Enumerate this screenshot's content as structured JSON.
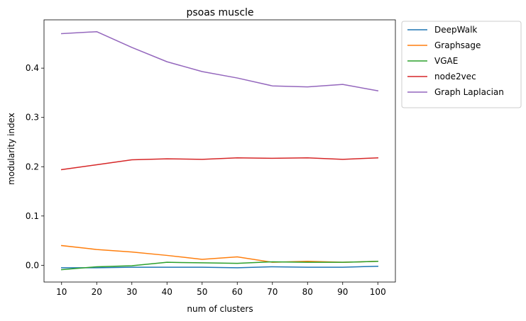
{
  "chart_data": {
    "type": "line",
    "title": "psoas muscle",
    "xlabel": "num of clusters",
    "ylabel": "modularity index",
    "x": [
      10,
      20,
      30,
      40,
      50,
      60,
      70,
      80,
      90,
      100
    ],
    "xlim": [
      5,
      105
    ],
    "ylim": [
      -0.034,
      0.498
    ],
    "xticks": [
      "10",
      "20",
      "30",
      "40",
      "50",
      "60",
      "70",
      "80",
      "90",
      "100"
    ],
    "yticks": [
      "0.0",
      "0.1",
      "0.2",
      "0.3",
      "0.4"
    ],
    "grid": false,
    "legend_position": "outside-top-right",
    "series": [
      {
        "name": "DeepWalk",
        "color": "#1f77b4",
        "values": [
          -0.005,
          -0.005,
          -0.004,
          -0.004,
          -0.004,
          -0.005,
          -0.003,
          -0.004,
          -0.004,
          -0.002
        ]
      },
      {
        "name": "Graphsage",
        "color": "#ff7f0e",
        "values": [
          0.04,
          0.032,
          0.027,
          0.02,
          0.012,
          0.017,
          0.006,
          0.008,
          0.006,
          0.008
        ]
      },
      {
        "name": "VGAE",
        "color": "#2ca02c",
        "values": [
          -0.009,
          -0.003,
          -0.001,
          0.006,
          0.005,
          0.004,
          0.007,
          0.006,
          0.006,
          0.008
        ]
      },
      {
        "name": "node2vec",
        "color": "#d62728",
        "values": [
          0.194,
          0.204,
          0.214,
          0.216,
          0.215,
          0.218,
          0.217,
          0.218,
          0.215,
          0.218
        ]
      },
      {
        "name": "Graph Laplacian",
        "color": "#9467bd",
        "values": [
          0.47,
          0.474,
          0.442,
          0.413,
          0.393,
          0.38,
          0.364,
          0.362,
          0.367,
          0.354
        ]
      }
    ]
  }
}
